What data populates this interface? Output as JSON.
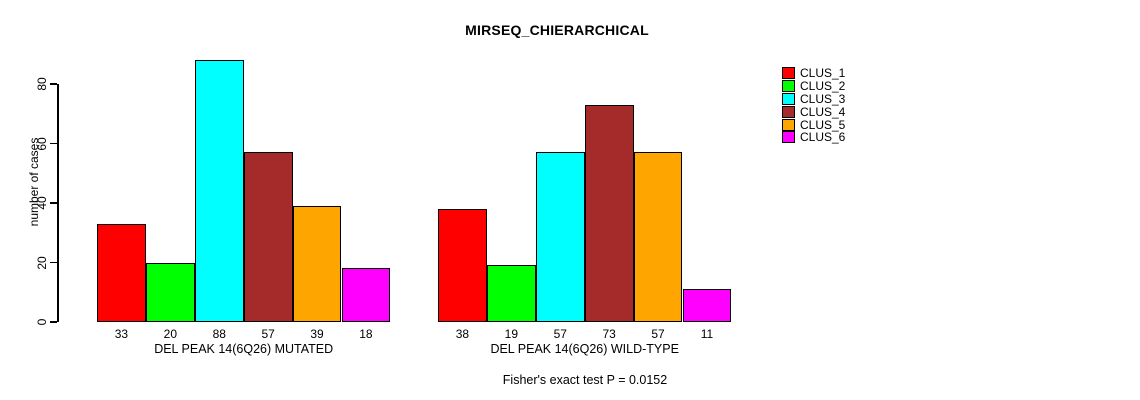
{
  "title": "MIRSEQ_CHIERARCHICAL",
  "footnote": "Fisher's exact test P = 0.0152",
  "chart_data": {
    "type": "bar",
    "title": "MIRSEQ_CHIERARCHICAL",
    "xlabel": "",
    "ylabel": "number of cases",
    "ylim": [
      0,
      88
    ],
    "yticks": [
      0,
      20,
      40,
      60,
      80
    ],
    "grid": false,
    "legend_position": "right-outside",
    "bar_borders": "#000000",
    "categories": [
      "DEL PEAK 14(6Q26) MUTATED",
      "DEL PEAK 14(6Q26) WILD-TYPE"
    ],
    "series": [
      {
        "name": "CLUS_1",
        "color": "#FF0000",
        "values": [
          33,
          38
        ]
      },
      {
        "name": "CLUS_2",
        "color": "#00FF00",
        "values": [
          20,
          19
        ]
      },
      {
        "name": "CLUS_3",
        "color": "#00FFFF",
        "values": [
          88,
          57
        ]
      },
      {
        "name": "CLUS_4",
        "color": "#A52A2A",
        "values": [
          57,
          73
        ]
      },
      {
        "name": "CLUS_5",
        "color": "#FFA500",
        "values": [
          39,
          57
        ]
      },
      {
        "name": "CLUS_6",
        "color": "#FF00FF",
        "values": [
          18,
          11
        ]
      }
    ],
    "bar_value_labels": {
      "DEL PEAK 14(6Q26) MUTATED": [
        33,
        20,
        88,
        57,
        39,
        18
      ],
      "DEL PEAK 14(6Q26) WILD-TYPE": [
        38,
        19,
        57,
        73,
        57,
        11
      ]
    },
    "annotation": "Fisher's exact test P = 0.0152"
  }
}
